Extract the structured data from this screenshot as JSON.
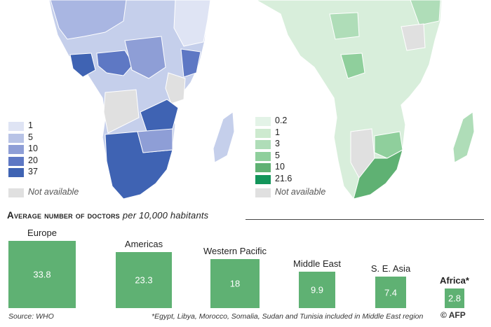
{
  "left_map": {
    "legend": [
      {
        "label": "1",
        "color": "#dfe4f4"
      },
      {
        "label": "5",
        "color": "#b8c3e6"
      },
      {
        "label": "10",
        "color": "#8e9ed6"
      },
      {
        "label": "20",
        "color": "#5e78c4"
      },
      {
        "label": "37",
        "color": "#3f63b3"
      }
    ],
    "not_available": {
      "label": "Not available",
      "color": "#e0e0e0"
    }
  },
  "right_map": {
    "legend": [
      {
        "label": "0.2",
        "color": "#e3f3e7"
      },
      {
        "label": "1",
        "color": "#cdeacf"
      },
      {
        "label": "3",
        "color": "#afddb8"
      },
      {
        "label": "5",
        "color": "#8fcf9c"
      },
      {
        "label": "10",
        "color": "#5fb173"
      },
      {
        "label": "21.6",
        "color": "#13955a"
      }
    ],
    "not_available": {
      "label": "Not available",
      "color": "#e0e0e0"
    }
  },
  "chart_data": {
    "type": "bar",
    "title": "Average number of doctors",
    "subtitle": "per 10,000 habitants",
    "categories": [
      "Europe",
      "Americas",
      "Western Pacific",
      "Middle East",
      "S. E. Asia",
      "Africa*"
    ],
    "values": [
      33.8,
      23.3,
      18,
      9.9,
      7.4,
      2.8
    ],
    "value_labels": [
      "33.8",
      "23.3",
      "18",
      "9.9",
      "7.4",
      "2.8"
    ],
    "encoding": "square area proportional to value",
    "bar_color": "#5fb173",
    "highlight": "Africa*"
  },
  "footer": {
    "source": "Source: WHO",
    "footnote": "*Egypt, Libya, Morocco, Somalia, Sudan and Tunisia included in Middle East region",
    "credit": "© AFP"
  }
}
